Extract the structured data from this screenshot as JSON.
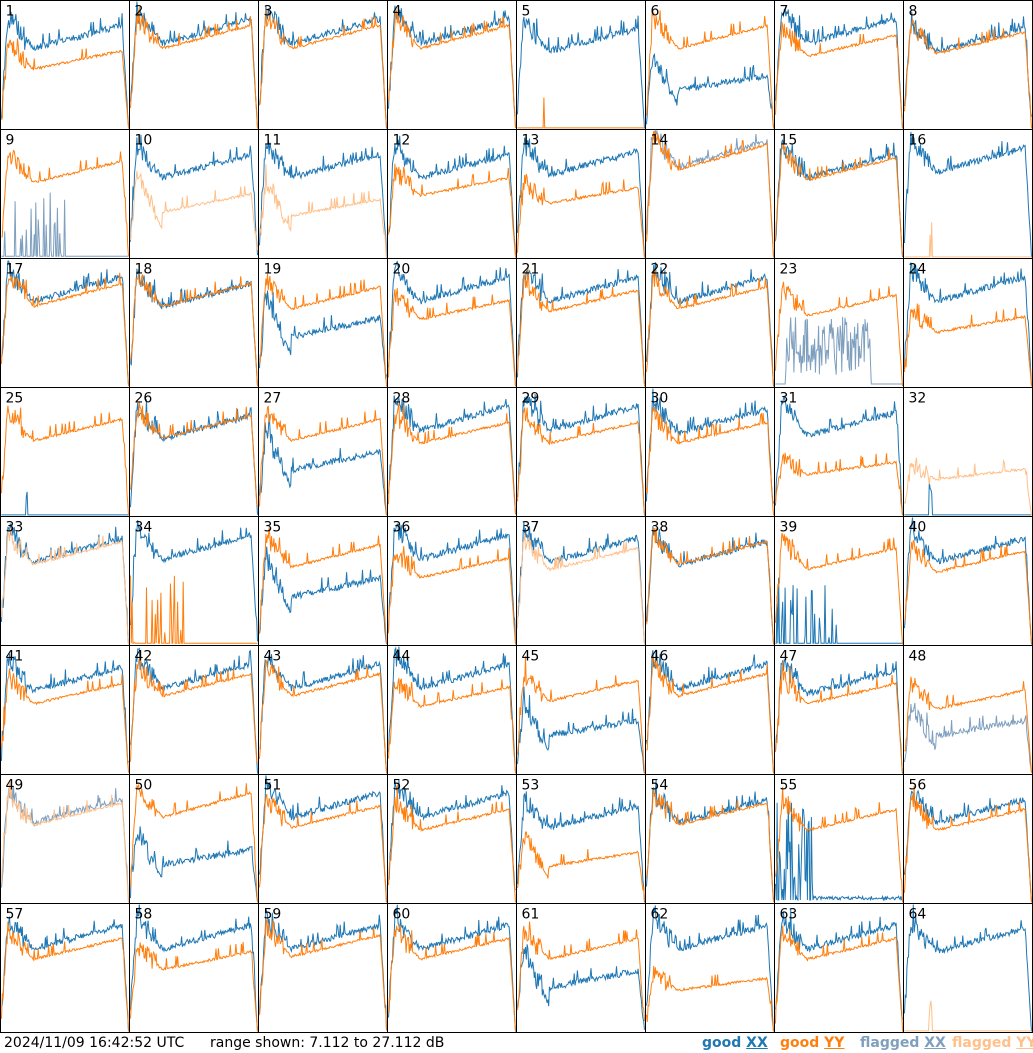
{
  "footer": {
    "timestamp": "2024/11/09 16:42:52 UTC",
    "range": "range shown: 7.112 to 27.112 dB"
  },
  "legend": [
    {
      "prefix": "good ",
      "pol": "XX",
      "color": "#1f77b4"
    },
    {
      "prefix": "good ",
      "pol": "YY",
      "color": "#ff7f0e"
    },
    {
      "prefix": "flagged ",
      "pol": "XX",
      "color": "#7f9fbf"
    },
    {
      "prefix": "flagged ",
      "pol": "YY",
      "color": "#ffc08a"
    }
  ],
  "colors": {
    "good_xx": "#1f77b4",
    "good_yy": "#ff7f0e",
    "flagged_xx": "#7f9fbf",
    "flagged_yy": "#ffc08a",
    "border": "#000000"
  },
  "chart_data": {
    "type": "line",
    "grid": "8x8 small multiples",
    "ylim_db": [
      7.112,
      27.112
    ],
    "series_per_panel": [
      "XX",
      "YY"
    ],
    "panels": [
      {
        "id": "1",
        "xx": "good",
        "yy": "good",
        "xx_shape": "normal",
        "yy_shape": "rolloff_low",
        "xx_level": 0.62,
        "yy_level": 0.5
      },
      {
        "id": "2",
        "xx": "good",
        "yy": "good",
        "xx_shape": "normal",
        "yy_shape": "normal",
        "xx_level": 0.66,
        "yy_level": 0.62
      },
      {
        "id": "3",
        "xx": "good",
        "yy": "good",
        "xx_shape": "normal",
        "yy_shape": "normal",
        "xx_level": 0.66,
        "yy_level": 0.62
      },
      {
        "id": "4",
        "xx": "good",
        "yy": "good",
        "xx_shape": "normal",
        "yy_shape": "normal",
        "xx_level": 0.66,
        "yy_level": 0.62
      },
      {
        "id": "5",
        "xx": "good",
        "yy": "good",
        "xx_shape": "normal",
        "yy_shape": "dead",
        "xx_level": 0.6,
        "yy_level": 0.0
      },
      {
        "id": "6",
        "xx": "good",
        "yy": "good",
        "xx_shape": "dip",
        "yy_shape": "normal",
        "xx_level": 0.4,
        "yy_level": 0.62
      },
      {
        "id": "7",
        "xx": "good",
        "yy": "good",
        "xx_shape": "normal",
        "yy_shape": "normal",
        "xx_level": 0.66,
        "yy_level": 0.56
      },
      {
        "id": "8",
        "xx": "good",
        "yy": "good",
        "xx_shape": "normal",
        "yy_shape": "normal",
        "xx_level": 0.6,
        "yy_level": 0.58
      },
      {
        "id": "9",
        "xx": "flagged",
        "yy": "good",
        "xx_shape": "dead_spiky",
        "yy_shape": "normal",
        "xx_level": 0.0,
        "yy_level": 0.58
      },
      {
        "id": "10",
        "xx": "good",
        "yy": "flagged",
        "xx_shape": "normal",
        "yy_shape": "dip",
        "xx_level": 0.62,
        "yy_level": 0.48
      },
      {
        "id": "11",
        "xx": "good",
        "yy": "flagged",
        "xx_shape": "normal",
        "yy_shape": "dip",
        "xx_level": 0.62,
        "yy_level": 0.44
      },
      {
        "id": "12",
        "xx": "good",
        "yy": "good",
        "xx_shape": "normal",
        "yy_shape": "normal",
        "xx_level": 0.62,
        "yy_level": 0.48
      },
      {
        "id": "13",
        "xx": "good",
        "yy": "good",
        "xx_shape": "normal",
        "yy_shape": "normal",
        "xx_level": 0.64,
        "yy_level": 0.42
      },
      {
        "id": "14",
        "xx": "flagged",
        "yy": "good",
        "xx_shape": "normal",
        "yy_shape": "normal",
        "xx_level": 0.7,
        "yy_level": 0.68
      },
      {
        "id": "15",
        "xx": "good",
        "yy": "good",
        "xx_shape": "normal",
        "yy_shape": "normal",
        "xx_level": 0.62,
        "yy_level": 0.6
      },
      {
        "id": "16",
        "xx": "good",
        "yy": "flagged",
        "xx_shape": "normal",
        "yy_shape": "dead",
        "xx_level": 0.66,
        "yy_level": 0.0
      },
      {
        "id": "17",
        "xx": "good",
        "yy": "good",
        "xx_shape": "normal",
        "yy_shape": "normal",
        "xx_level": 0.66,
        "yy_level": 0.62
      },
      {
        "id": "18",
        "xx": "good",
        "yy": "good",
        "xx_shape": "normal",
        "yy_shape": "normal",
        "xx_level": 0.62,
        "yy_level": 0.62
      },
      {
        "id": "19",
        "xx": "good",
        "yy": "good",
        "xx_shape": "dip",
        "yy_shape": "normal",
        "xx_level": 0.52,
        "yy_level": 0.6
      },
      {
        "id": "20",
        "xx": "good",
        "yy": "good",
        "xx_shape": "normal",
        "yy_shape": "normal",
        "xx_level": 0.66,
        "yy_level": 0.52
      },
      {
        "id": "21",
        "xx": "good",
        "yy": "good",
        "xx_shape": "normal",
        "yy_shape": "normal",
        "xx_level": 0.66,
        "yy_level": 0.58
      },
      {
        "id": "22",
        "xx": "good",
        "yy": "good",
        "xx_shape": "normal",
        "yy_shape": "normal",
        "xx_level": 0.66,
        "yy_level": 0.6
      },
      {
        "id": "23",
        "xx": "flagged",
        "yy": "good",
        "xx_shape": "noise",
        "yy_shape": "normal",
        "xx_level": 0.55,
        "yy_level": 0.55
      },
      {
        "id": "24",
        "xx": "good",
        "yy": "good",
        "xx_shape": "normal",
        "yy_shape": "normal",
        "xx_level": 0.66,
        "yy_level": 0.42
      },
      {
        "id": "25",
        "xx": "good",
        "yy": "good",
        "xx_shape": "dead",
        "yy_shape": "normal",
        "xx_level": 0.0,
        "yy_level": 0.58
      },
      {
        "id": "26",
        "xx": "good",
        "yy": "good",
        "xx_shape": "normal",
        "yy_shape": "normal",
        "xx_level": 0.6,
        "yy_level": 0.6
      },
      {
        "id": "27",
        "xx": "good",
        "yy": "good",
        "xx_shape": "dip",
        "yy_shape": "normal",
        "xx_level": 0.48,
        "yy_level": 0.58
      },
      {
        "id": "28",
        "xx": "good",
        "yy": "good",
        "xx_shape": "normal",
        "yy_shape": "normal",
        "xx_level": 0.66,
        "yy_level": 0.56
      },
      {
        "id": "29",
        "xx": "good",
        "yy": "good",
        "xx_shape": "normal",
        "yy_shape": "normal",
        "xx_level": 0.66,
        "yy_level": 0.56
      },
      {
        "id": "30",
        "xx": "good",
        "yy": "good",
        "xx_shape": "normal",
        "yy_shape": "normal",
        "xx_level": 0.64,
        "yy_level": 0.56
      },
      {
        "id": "31",
        "xx": "good",
        "yy": "good",
        "xx_shape": "normal",
        "yy_shape": "normal",
        "xx_level": 0.62,
        "yy_level": 0.32
      },
      {
        "id": "32",
        "xx": "good",
        "yy": "flagged",
        "xx_shape": "dead",
        "yy_shape": "normal",
        "xx_level": 0.0,
        "yy_level": 0.28
      },
      {
        "id": "33",
        "xx": "good",
        "yy": "flagged",
        "xx_shape": "normal",
        "yy_shape": "normal",
        "xx_level": 0.64,
        "yy_level": 0.62
      },
      {
        "id": "34",
        "xx": "good",
        "yy": "good",
        "xx_shape": "normal",
        "yy_shape": "dead_spiky",
        "xx_level": 0.66,
        "yy_level": 0.0
      },
      {
        "id": "35",
        "xx": "good",
        "yy": "good",
        "xx_shape": "dip",
        "yy_shape": "normal",
        "xx_level": 0.5,
        "yy_level": 0.6
      },
      {
        "id": "36",
        "xx": "good",
        "yy": "good",
        "xx_shape": "normal",
        "yy_shape": "normal",
        "xx_level": 0.66,
        "yy_level": 0.52
      },
      {
        "id": "37",
        "xx": "good",
        "yy": "flagged",
        "xx_shape": "normal",
        "yy_shape": "normal",
        "xx_level": 0.64,
        "yy_level": 0.58
      },
      {
        "id": "38",
        "xx": "good",
        "yy": "good",
        "xx_shape": "normal",
        "yy_shape": "normal",
        "xx_level": 0.62,
        "yy_level": 0.62
      },
      {
        "id": "39",
        "xx": "good",
        "yy": "good",
        "xx_shape": "dead_spiky",
        "yy_shape": "normal",
        "xx_level": 0.0,
        "yy_level": 0.58
      },
      {
        "id": "40",
        "xx": "good",
        "yy": "good",
        "xx_shape": "normal",
        "yy_shape": "normal",
        "xx_level": 0.64,
        "yy_level": 0.56
      },
      {
        "id": "41",
        "xx": "good",
        "yy": "good",
        "xx_shape": "normal",
        "yy_shape": "normal",
        "xx_level": 0.64,
        "yy_level": 0.54
      },
      {
        "id": "42",
        "xx": "good",
        "yy": "good",
        "xx_shape": "normal",
        "yy_shape": "normal",
        "xx_level": 0.66,
        "yy_level": 0.6
      },
      {
        "id": "43",
        "xx": "good",
        "yy": "good",
        "xx_shape": "normal",
        "yy_shape": "normal",
        "xx_level": 0.66,
        "yy_level": 0.6
      },
      {
        "id": "44",
        "xx": "good",
        "yy": "good",
        "xx_shape": "normal",
        "yy_shape": "normal",
        "xx_level": 0.66,
        "yy_level": 0.52
      },
      {
        "id": "45",
        "xx": "good",
        "yy": "good",
        "xx_shape": "dip",
        "yy_shape": "normal",
        "xx_level": 0.4,
        "yy_level": 0.56
      },
      {
        "id": "46",
        "xx": "good",
        "yy": "good",
        "xx_shape": "normal",
        "yy_shape": "normal",
        "xx_level": 0.66,
        "yy_level": 0.6
      },
      {
        "id": "47",
        "xx": "good",
        "yy": "good",
        "xx_shape": "normal",
        "yy_shape": "normal",
        "xx_level": 0.62,
        "yy_level": 0.54
      },
      {
        "id": "48",
        "xx": "flagged",
        "yy": "good",
        "xx_shape": "dip",
        "yy_shape": "normal",
        "xx_level": 0.4,
        "yy_level": 0.5
      },
      {
        "id": "49",
        "xx": "flagged",
        "yy": "flagged",
        "xx_shape": "normal",
        "yy_shape": "normal",
        "xx_level": 0.62,
        "yy_level": 0.6
      },
      {
        "id": "50",
        "xx": "good",
        "yy": "good",
        "xx_shape": "dip",
        "yy_shape": "normal",
        "xx_level": 0.4,
        "yy_level": 0.66
      },
      {
        "id": "51",
        "xx": "good",
        "yy": "good",
        "xx_shape": "normal",
        "yy_shape": "normal",
        "xx_level": 0.66,
        "yy_level": 0.58
      },
      {
        "id": "52",
        "xx": "good",
        "yy": "good",
        "xx_shape": "normal",
        "yy_shape": "normal",
        "xx_level": 0.66,
        "yy_level": 0.56
      },
      {
        "id": "53",
        "xx": "good",
        "yy": "good",
        "xx_shape": "normal",
        "yy_shape": "dip",
        "xx_level": 0.58,
        "yy_level": 0.38
      },
      {
        "id": "54",
        "xx": "good",
        "yy": "good",
        "xx_shape": "normal",
        "yy_shape": "normal",
        "xx_level": 0.62,
        "yy_level": 0.6
      },
      {
        "id": "55",
        "xx": "good",
        "yy": "good",
        "xx_shape": "noise_low",
        "yy_shape": "normal",
        "xx_level": 0.0,
        "yy_level": 0.56
      },
      {
        "id": "56",
        "xx": "good",
        "yy": "good",
        "xx_shape": "normal",
        "yy_shape": "normal",
        "xx_level": 0.62,
        "yy_level": 0.56
      },
      {
        "id": "57",
        "xx": "good",
        "yy": "good",
        "xx_shape": "normal",
        "yy_shape": "normal",
        "xx_level": 0.64,
        "yy_level": 0.56
      },
      {
        "id": "58",
        "xx": "good",
        "yy": "good",
        "xx_shape": "normal",
        "yy_shape": "normal",
        "xx_level": 0.64,
        "yy_level": 0.48
      },
      {
        "id": "59",
        "xx": "good",
        "yy": "good",
        "xx_shape": "normal",
        "yy_shape": "normal",
        "xx_level": 0.64,
        "yy_level": 0.58
      },
      {
        "id": "60",
        "xx": "good",
        "yy": "good",
        "xx_shape": "normal",
        "yy_shape": "normal",
        "xx_level": 0.64,
        "yy_level": 0.56
      },
      {
        "id": "61",
        "xx": "good",
        "yy": "good",
        "xx_shape": "dip",
        "yy_shape": "normal",
        "xx_level": 0.46,
        "yy_level": 0.56
      },
      {
        "id": "62",
        "xx": "good",
        "yy": "good",
        "xx_shape": "normal",
        "yy_shape": "normal",
        "xx_level": 0.64,
        "yy_level": 0.32
      },
      {
        "id": "63",
        "xx": "good",
        "yy": "good",
        "xx_shape": "normal",
        "yy_shape": "normal",
        "xx_level": 0.64,
        "yy_level": 0.56
      },
      {
        "id": "64",
        "xx": "good",
        "yy": "flagged",
        "xx_shape": "normal",
        "yy_shape": "dead",
        "xx_level": 0.62,
        "yy_level": 0.0
      }
    ]
  }
}
